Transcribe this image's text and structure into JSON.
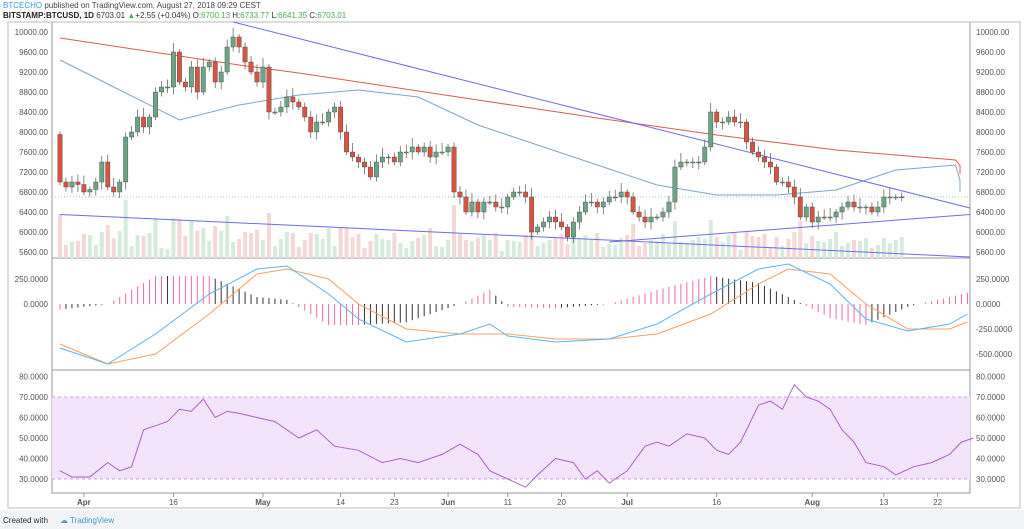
{
  "header": {
    "author": "BTCECHO",
    "published": "published on TradingView.com, August 27, 2018 09:29 CEST",
    "symbol": "BITSTAMP:BTCUSD, 1D",
    "last": "6703.01",
    "change": "+2.55 (+0.04%)",
    "o_label": "O:",
    "o": "6700.13",
    "h_label": "H:",
    "h": "6733.77",
    "l_label": "L:",
    "l": "6641.35",
    "c_label": "C:",
    "c": "6703.01"
  },
  "footer": {
    "created": "Created with",
    "brand": "TradingView"
  },
  "chart_data": [
    {
      "type": "candlestick",
      "name": "BTCUSD price",
      "start_date": "2018-03-28",
      "ylim": [
        5600,
        10200
      ],
      "yticks": [
        "10000.00",
        "9600.00",
        "9200.00",
        "8800.00",
        "8400.00",
        "8000.00",
        "7600.00",
        "7200.00",
        "6800.00",
        "6400.00",
        "6000.00",
        "5600.00"
      ],
      "ytick_values": [
        10000,
        9600,
        9200,
        8800,
        8400,
        8000,
        7600,
        7200,
        6800,
        6400,
        6000,
        5600
      ],
      "open_first": 7950,
      "closes": [
        7000,
        6900,
        7000,
        6950,
        6800,
        6850,
        7000,
        7400,
        6900,
        6800,
        7000,
        7900,
        8000,
        8300,
        8100,
        8300,
        8800,
        8900,
        8900,
        9600,
        9000,
        8900,
        9300,
        8800,
        9300,
        9400,
        9000,
        9200,
        9700,
        9900,
        9700,
        9400,
        9200,
        9000,
        9300,
        8400,
        8400,
        8500,
        8700,
        8600,
        8500,
        8300,
        8000,
        8200,
        8200,
        8400,
        8500,
        8000,
        7600,
        7500,
        7400,
        7300,
        7100,
        7400,
        7500,
        7500,
        7400,
        7600,
        7600,
        7700,
        7600,
        7700,
        7500,
        7600,
        7600,
        7700,
        6800,
        6700,
        6400,
        6600,
        6400,
        6600,
        6600,
        6500,
        6500,
        6700,
        6800,
        6800,
        6700,
        6000,
        6100,
        6200,
        6300,
        6200,
        6100,
        5900,
        6200,
        6400,
        6600,
        6600,
        6500,
        6600,
        6700,
        6700,
        6800,
        6700,
        6400,
        6300,
        6200,
        6300,
        6300,
        6400,
        6600,
        7300,
        7400,
        7400,
        7400,
        7400,
        7700,
        8400,
        8200,
        8200,
        8300,
        8200,
        8200,
        7800,
        7600,
        7500,
        7400,
        7300,
        7000,
        7000,
        6900,
        6700,
        6300,
        6500,
        6200,
        6300,
        6300,
        6300,
        6400,
        6500,
        6600,
        6500,
        6500,
        6500,
        6400,
        6500,
        6700,
        6700,
        6700,
        6703
      ],
      "ma_red": {
        "step_days": 10,
        "values": [
          9880,
          9700,
          9520,
          9340,
          9180,
          9000,
          8820,
          8640,
          8460,
          8280,
          8110,
          7940,
          7790,
          7640,
          7540,
          7440,
          7330,
          7240,
          7160
        ]
      },
      "ma_blue": {
        "step_days": 10,
        "values": [
          9440,
          8840,
          8240,
          8540,
          8740,
          8840,
          8700,
          8140,
          7740,
          7340,
          6940,
          6740,
          6740,
          6840,
          7240,
          7340,
          7040,
          6840,
          6800
        ]
      },
      "trendlines": [
        {
          "from": [
            29,
            10200
          ],
          "to": [
            154,
            6480
          ]
        },
        {
          "from": [
            0,
            6350
          ],
          "to": [
            154,
            5500
          ]
        },
        {
          "from": [
            92,
            5800
          ],
          "to": [
            154,
            6350
          ]
        }
      ],
      "hline": 6703
    },
    {
      "type": "line",
      "name": "MACD",
      "yticks": [
        "250.0000",
        "0.0000",
        "-250.0000",
        "-500.0000"
      ],
      "ytick_values": [
        250,
        0,
        -250,
        -500
      ],
      "ylim": [
        -680,
        480
      ],
      "macd": [
        [
          0,
          -440
        ],
        [
          8,
          -600
        ],
        [
          16,
          -300
        ],
        [
          25,
          100
        ],
        [
          33,
          350
        ],
        [
          38,
          380
        ],
        [
          45,
          100
        ],
        [
          50,
          -150
        ],
        [
          58,
          -380
        ],
        [
          67,
          -300
        ],
        [
          72,
          -200
        ],
        [
          75,
          -320
        ],
        [
          83,
          -380
        ],
        [
          92,
          -350
        ],
        [
          100,
          -200
        ],
        [
          109,
          100
        ],
        [
          117,
          350
        ],
        [
          122,
          400
        ],
        [
          129,
          200
        ],
        [
          135,
          -150
        ],
        [
          142,
          -270
        ],
        [
          149,
          -200
        ],
        [
          152,
          -100
        ]
      ],
      "signal": [
        [
          0,
          -400
        ],
        [
          8,
          -600
        ],
        [
          16,
          -500
        ],
        [
          25,
          -100
        ],
        [
          33,
          300
        ],
        [
          38,
          350
        ],
        [
          45,
          250
        ],
        [
          50,
          0
        ],
        [
          58,
          -250
        ],
        [
          67,
          -300
        ],
        [
          75,
          -300
        ],
        [
          83,
          -350
        ],
        [
          92,
          -350
        ],
        [
          100,
          -300
        ],
        [
          109,
          -100
        ],
        [
          117,
          200
        ],
        [
          122,
          350
        ],
        [
          129,
          300
        ],
        [
          135,
          0
        ],
        [
          142,
          -250
        ],
        [
          149,
          -250
        ],
        [
          152,
          -180
        ]
      ]
    },
    {
      "type": "line",
      "name": "RSI",
      "yticks": [
        "80.0000",
        "70.0000",
        "60.0000",
        "50.0000",
        "40.0000",
        "30.0000"
      ],
      "ytick_values": [
        80,
        70,
        60,
        50,
        40,
        30
      ],
      "ylim": [
        23,
        82
      ],
      "band": [
        30,
        70
      ],
      "values": [
        [
          0,
          34
        ],
        [
          2,
          31
        ],
        [
          5,
          31
        ],
        [
          8,
          38
        ],
        [
          10,
          34
        ],
        [
          12,
          36
        ],
        [
          14,
          54
        ],
        [
          16,
          56
        ],
        [
          18,
          58
        ],
        [
          20,
          64
        ],
        [
          22,
          63
        ],
        [
          24,
          69
        ],
        [
          26,
          60
        ],
        [
          28,
          63
        ],
        [
          30,
          62
        ],
        [
          33,
          60
        ],
        [
          36,
          58
        ],
        [
          40,
          50
        ],
        [
          43,
          54
        ],
        [
          46,
          46
        ],
        [
          50,
          44
        ],
        [
          54,
          38
        ],
        [
          57,
          40
        ],
        [
          60,
          38
        ],
        [
          64,
          42
        ],
        [
          67,
          47
        ],
        [
          70,
          42
        ],
        [
          72,
          34
        ],
        [
          75,
          30
        ],
        [
          78,
          26
        ],
        [
          80,
          32
        ],
        [
          83,
          40
        ],
        [
          86,
          38
        ],
        [
          88,
          30
        ],
        [
          90,
          34
        ],
        [
          92,
          28
        ],
        [
          95,
          34
        ],
        [
          98,
          46
        ],
        [
          100,
          48
        ],
        [
          102,
          46
        ],
        [
          105,
          52
        ],
        [
          108,
          50
        ],
        [
          110,
          44
        ],
        [
          112,
          42
        ],
        [
          114,
          48
        ],
        [
          117,
          66
        ],
        [
          119,
          68
        ],
        [
          121,
          64
        ],
        [
          123,
          76
        ],
        [
          125,
          70
        ],
        [
          127,
          68
        ],
        [
          129,
          64
        ],
        [
          131,
          54
        ],
        [
          133,
          48
        ],
        [
          135,
          38
        ],
        [
          138,
          36
        ],
        [
          140,
          32
        ],
        [
          143,
          36
        ],
        [
          146,
          38
        ],
        [
          149,
          42
        ],
        [
          151,
          48
        ],
        [
          153,
          50
        ]
      ]
    },
    {
      "type": "axis",
      "xticks": [
        {
          "label": "Apr",
          "day": 4,
          "bold": true
        },
        {
          "label": "16",
          "day": 19
        },
        {
          "label": "May",
          "day": 34,
          "bold": true
        },
        {
          "label": "14",
          "day": 47
        },
        {
          "label": "23",
          "day": 56
        },
        {
          "label": "Jun",
          "day": 65,
          "bold": true
        },
        {
          "label": "11",
          "day": 75
        },
        {
          "label": "20",
          "day": 84
        },
        {
          "label": "Jul",
          "day": 95,
          "bold": true
        },
        {
          "label": "16",
          "day": 110
        },
        {
          "label": "Aug",
          "day": 126,
          "bold": true
        },
        {
          "label": "13",
          "day": 138
        },
        {
          "label": "22",
          "day": 147
        }
      ]
    }
  ],
  "colors": {
    "up": "#6ba583",
    "down": "#d75442",
    "ma_red": "#e05a4e",
    "ma_blue": "#7aa6cc",
    "trend": "#6c6cf0",
    "macd": "#5ab4f0",
    "signal": "#f8a060",
    "hist": "#f06aa0",
    "rsi": "#b05fc8",
    "band": "#f3e4fb"
  }
}
